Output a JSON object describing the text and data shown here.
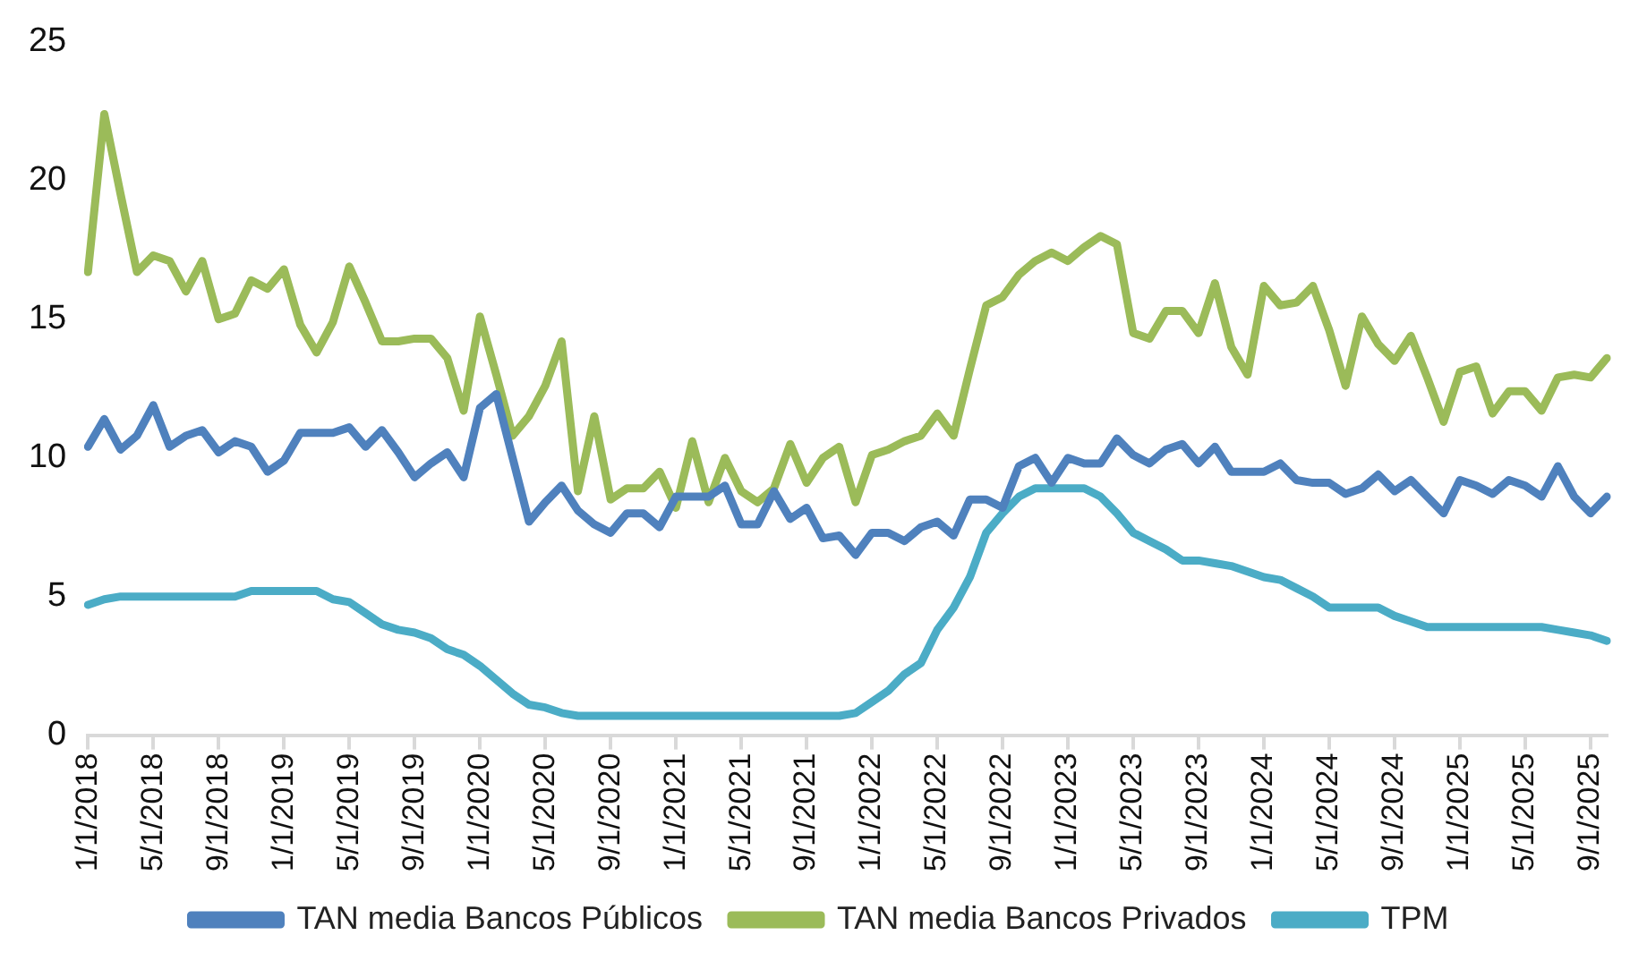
{
  "chart_data": {
    "type": "line",
    "categories": [
      "1/1/2018",
      null,
      null,
      null,
      "5/1/2018",
      null,
      null,
      null,
      "9/1/2018",
      null,
      null,
      null,
      "1/1/2019",
      null,
      null,
      null,
      "5/1/2019",
      null,
      null,
      null,
      "9/1/2019",
      null,
      null,
      null,
      "1/1/2020",
      null,
      null,
      null,
      "5/1/2020",
      null,
      null,
      null,
      "9/1/2020",
      null,
      null,
      null,
      "1/1/2021",
      null,
      null,
      null,
      "5/1/2021",
      null,
      null,
      null,
      "9/1/2021",
      null,
      null,
      null,
      "1/1/2022",
      null,
      null,
      null,
      "5/1/2022",
      null,
      null,
      null,
      "9/1/2022",
      null,
      null,
      null,
      "1/1/2023",
      null,
      null,
      null,
      "5/1/2023",
      null,
      null,
      null,
      "9/1/2023",
      null,
      null,
      null,
      "1/1/2024",
      null,
      null,
      null,
      "5/1/2024",
      null,
      null,
      null,
      "9/1/2024",
      null,
      null,
      null,
      "1/1/2025",
      null,
      null,
      null,
      "5/1/2025",
      null,
      null,
      null,
      "9/1/2025",
      null
    ],
    "series": [
      {
        "name": "TAN media Bancos Públicos",
        "color": "#4f81bd",
        "values": [
          10.4,
          11.4,
          10.3,
          10.8,
          11.9,
          10.4,
          10.8,
          11.0,
          10.2,
          10.6,
          10.4,
          9.5,
          9.9,
          10.9,
          10.9,
          10.9,
          11.1,
          10.4,
          11.0,
          10.2,
          9.3,
          9.8,
          10.2,
          9.3,
          11.8,
          12.3,
          10.0,
          7.7,
          8.4,
          9.0,
          8.1,
          7.6,
          7.3,
          8.0,
          8.0,
          7.5,
          8.6,
          8.6,
          8.6,
          9.0,
          7.6,
          7.6,
          8.8,
          7.8,
          8.2,
          7.1,
          7.2,
          6.5,
          7.3,
          7.3,
          7.0,
          7.5,
          7.7,
          7.2,
          8.5,
          8.5,
          8.2,
          9.7,
          10.0,
          9.1,
          10.0,
          9.8,
          9.8,
          10.7,
          10.1,
          9.8,
          10.3,
          10.5,
          9.8,
          10.4,
          9.5,
          9.5,
          9.5,
          9.8,
          9.2,
          9.1,
          9.1,
          8.7,
          8.9,
          9.4,
          8.8,
          9.2,
          8.6,
          8.0,
          9.2,
          9.0,
          8.7,
          9.2,
          9.0,
          8.6,
          9.7,
          8.6,
          8.0,
          8.6
        ]
      },
      {
        "name": "TAN media Bancos Privados",
        "color": "#9bbb59",
        "values": [
          16.7,
          22.4,
          19.5,
          16.7,
          17.3,
          17.1,
          16.0,
          17.1,
          15.0,
          15.2,
          16.4,
          16.1,
          16.8,
          14.8,
          13.8,
          14.9,
          16.9,
          15.6,
          14.2,
          14.2,
          14.3,
          14.3,
          13.6,
          11.7,
          15.1,
          13.0,
          10.8,
          11.5,
          12.6,
          14.2,
          8.8,
          11.5,
          8.5,
          8.9,
          8.9,
          9.5,
          8.2,
          10.6,
          8.4,
          10.0,
          8.8,
          8.4,
          8.9,
          10.5,
          9.1,
          10.0,
          10.4,
          8.4,
          10.1,
          10.3,
          10.6,
          10.8,
          11.6,
          10.8,
          13.2,
          15.5,
          15.8,
          16.6,
          17.1,
          17.4,
          17.1,
          17.6,
          18.0,
          17.7,
          14.5,
          14.3,
          15.3,
          15.3,
          14.5,
          16.3,
          14.0,
          13.0,
          16.2,
          15.5,
          15.6,
          16.2,
          14.6,
          12.6,
          15.1,
          14.1,
          13.5,
          14.4,
          12.9,
          11.3,
          13.1,
          13.3,
          11.6,
          12.4,
          12.4,
          11.7,
          12.9,
          13.0,
          12.9,
          13.6
        ]
      },
      {
        "name": "TPM",
        "color": "#4bacc6",
        "values": [
          4.7,
          4.9,
          5.0,
          5.0,
          5.0,
          5.0,
          5.0,
          5.0,
          5.0,
          5.0,
          5.2,
          5.2,
          5.2,
          5.2,
          5.2,
          4.9,
          4.8,
          4.4,
          4.0,
          3.8,
          3.7,
          3.5,
          3.1,
          2.9,
          2.5,
          2.0,
          1.5,
          1.1,
          1.0,
          0.8,
          0.7,
          0.7,
          0.7,
          0.7,
          0.7,
          0.7,
          0.7,
          0.7,
          0.7,
          0.7,
          0.7,
          0.7,
          0.7,
          0.7,
          0.7,
          0.7,
          0.7,
          0.8,
          1.2,
          1.6,
          2.2,
          2.6,
          3.8,
          4.6,
          5.7,
          7.3,
          8.0,
          8.6,
          8.9,
          8.9,
          8.9,
          8.9,
          8.6,
          8.0,
          7.3,
          7.0,
          6.7,
          6.3,
          6.3,
          6.2,
          6.1,
          5.9,
          5.7,
          5.6,
          5.3,
          5.0,
          4.6,
          4.6,
          4.6,
          4.6,
          4.3,
          4.1,
          3.9,
          3.9,
          3.9,
          3.9,
          3.9,
          3.9,
          3.9,
          3.9,
          3.8,
          3.7,
          3.6,
          3.4
        ]
      }
    ],
    "ylim": [
      0,
      25
    ],
    "yticks": [
      0,
      5,
      10,
      15,
      20,
      25
    ],
    "grid": false,
    "legend": "bottom",
    "marker": "none",
    "line_style": "solid"
  }
}
